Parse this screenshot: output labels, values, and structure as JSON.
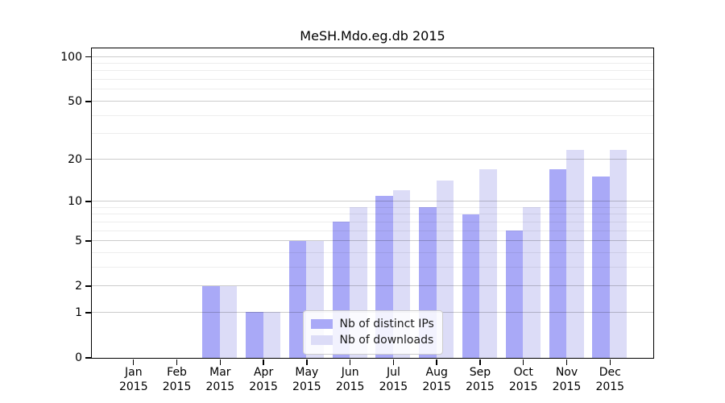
{
  "figure": {
    "title": "MeSH.Mdo.eg.db 2015",
    "background_color": "#ffffff"
  },
  "legend": {
    "items": [
      {
        "label": "Nb of distinct IPs",
        "color": "#a9a9f7"
      },
      {
        "label": "Nb of downloads",
        "color": "#dcdcf7"
      }
    ],
    "position": "lower center"
  },
  "chart_data": {
    "type": "bar",
    "title": "MeSH.Mdo.eg.db 2015",
    "categories": [
      "Jan 2015",
      "Feb 2015",
      "Mar 2015",
      "Apr 2015",
      "May 2015",
      "Jun 2015",
      "Jul 2015",
      "Aug 2015",
      "Sep 2015",
      "Oct 2015",
      "Nov 2015",
      "Dec 2015"
    ],
    "series": [
      {
        "name": "Nb of distinct IPs",
        "color": "#a9a9f7",
        "values": [
          0,
          0,
          2,
          1,
          5,
          7,
          11,
          9,
          8,
          6,
          17,
          15
        ]
      },
      {
        "name": "Nb of downloads",
        "color": "#dcdcf7",
        "values": [
          0,
          0,
          2,
          1,
          5,
          9,
          12,
          14,
          17,
          9,
          23,
          23
        ]
      }
    ],
    "xlabel": "",
    "ylabel": "",
    "y_scale": "log1p",
    "ylim": [
      0,
      114
    ],
    "y_major_ticks": [
      0,
      1,
      2,
      5,
      10,
      20,
      50,
      100
    ],
    "y_minor_gridlines": [
      3,
      4,
      6,
      7,
      8,
      9,
      30,
      40,
      60,
      70,
      80,
      90
    ],
    "grid": true,
    "frame": "box",
    "legend_position": "lower center",
    "major_grid_color": "#cccccc",
    "minor_grid_color": "#ededed"
  }
}
